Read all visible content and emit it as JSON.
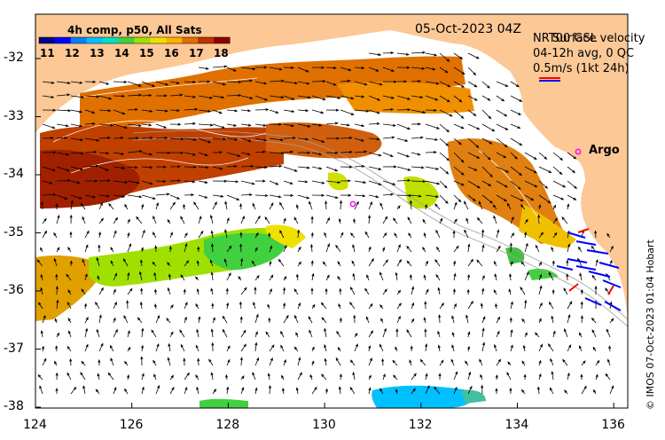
{
  "map": {
    "date_label": "05-Oct-2023 04Z",
    "product_line1": "NRT00 GSL",
    "product_line2": "04-12h avg, 0 QC",
    "velocity_line1": "Surface velocity",
    "velocity_line2": "0.5m/s (1kt 24h)",
    "credit": "© IMOS 07-Oct-2023 01:04 Hobart",
    "argo_label": "Argo",
    "colorbar": {
      "title": "4h comp, p50, All Sats",
      "ticks": [
        "11",
        "12",
        "13",
        "14",
        "15",
        "16",
        "17",
        "18"
      ],
      "colors": [
        "#00008b",
        "#0000ff",
        "#0080ff",
        "#00c0ff",
        "#00e0c0",
        "#40d040",
        "#a0e000",
        "#f0e000",
        "#ffb000",
        "#e07000",
        "#c03000",
        "#8b0000"
      ]
    },
    "lon_ticks": [
      "124",
      "126",
      "128",
      "130",
      "132",
      "134",
      "136"
    ],
    "lat_ticks": [
      "-32",
      "-33",
      "-34",
      "-35",
      "-36",
      "-37",
      "-38"
    ],
    "colors": {
      "land": "#fcc896",
      "ocean": "#ffffff",
      "argo": "#ff00ff",
      "arrow_black": "#000000",
      "arrow_blue": "#0000ff",
      "arrow_red": "#ff0000"
    }
  }
}
